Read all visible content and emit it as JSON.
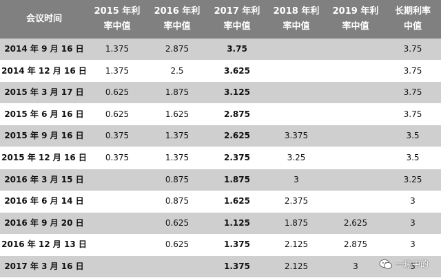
{
  "header": {
    "cols": [
      [
        "会议时间"
      ],
      [
        "2015 年利",
        "率中值"
      ],
      [
        "2016 年利",
        "率中值"
      ],
      [
        "2017 年利",
        "率中值"
      ],
      [
        "2018 年利",
        "率中值"
      ],
      [
        "2019 年利",
        "率中值"
      ],
      [
        "长期利率",
        "中值"
      ]
    ]
  },
  "rows": [
    {
      "date": "2014 年 9 月 16 日",
      "v2015": "1.375",
      "v2016": "2.875",
      "v2017": "3.75",
      "v2018": "",
      "v2019": "",
      "vlong": "3.75"
    },
    {
      "date": "2014 年 12 月 16 日",
      "v2015": "1.375",
      "v2016": "2.5",
      "v2017": "3.625",
      "v2018": "",
      "v2019": "",
      "vlong": "3.75"
    },
    {
      "date": "2015 年 3 月 17 日",
      "v2015": "0.625",
      "v2016": "1.875",
      "v2017": "3.125",
      "v2018": "",
      "v2019": "",
      "vlong": "3.75"
    },
    {
      "date": "2015 年 6 月 16 日",
      "v2015": "0.625",
      "v2016": "1.625",
      "v2017": "2.875",
      "v2018": "",
      "v2019": "",
      "vlong": "3.75"
    },
    {
      "date": "2015 年 9 月 16 日",
      "v2015": "0.375",
      "v2016": "1.375",
      "v2017": "2.625",
      "v2018": "3.375",
      "v2019": "",
      "vlong": "3.5"
    },
    {
      "date": "2015 年 12 月 16 日",
      "v2015": "0.375",
      "v2016": "1.375",
      "v2017": "2.375",
      "v2018": "3.25",
      "v2019": "",
      "vlong": "3.5"
    },
    {
      "date": "2016 年 3 月 15 日",
      "v2015": "",
      "v2016": "0.875",
      "v2017": "1.875",
      "v2018": "3",
      "v2019": "",
      "vlong": "3.25"
    },
    {
      "date": "2016 年 6 月 14 日",
      "v2015": "",
      "v2016": "0.875",
      "v2017": "1.625",
      "v2018": "2.375",
      "v2019": "",
      "vlong": "3"
    },
    {
      "date": "2016 年 9 月 20 日",
      "v2015": "",
      "v2016": "0.625",
      "v2017": "1.125",
      "v2018": "1.875",
      "v2019": "2.625",
      "vlong": "3"
    },
    {
      "date": "2016 年 12 月 13 日",
      "v2015": "",
      "v2016": "0.625",
      "v2017": "1.375",
      "v2018": "2.125",
      "v2019": "2.875",
      "vlong": "3"
    },
    {
      "date": "2017 年 3 月 16 日",
      "v2015": "",
      "v2016": "",
      "v2017": "1.375",
      "v2018": "2.125",
      "v2019": "3",
      "vlong": "3"
    }
  ],
  "watermark": {
    "text": "一瑜中的",
    "icon": "wechat-icon"
  },
  "colors": {
    "header_bg": "#808080",
    "shade_bg": "#cfcfcf",
    "white_bg": "#ffffff"
  }
}
